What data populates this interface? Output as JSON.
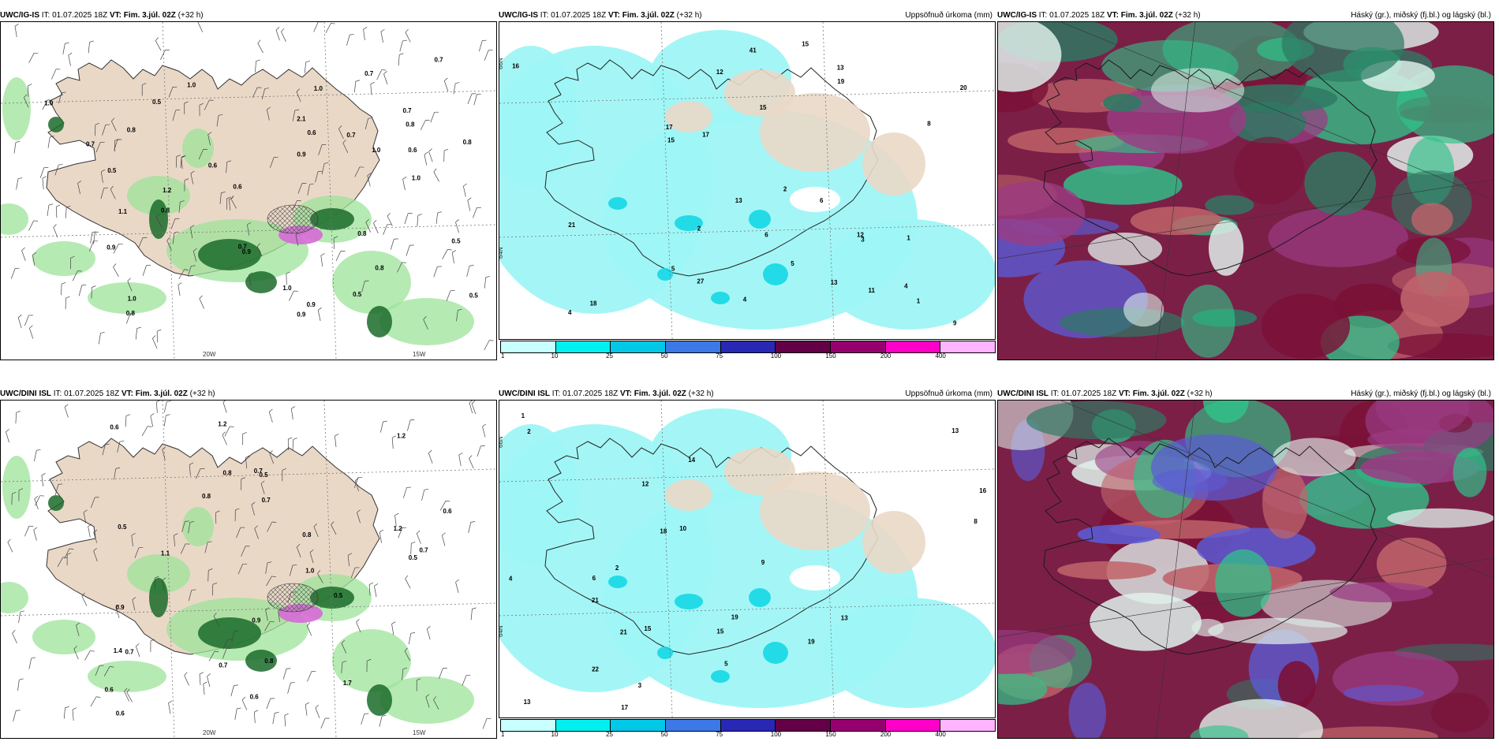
{
  "panels": [
    {
      "id": "p1",
      "model": "UWC/IG-IS",
      "it_label": "IT:",
      "it": "01.07.2025 18Z",
      "vt_label": "VT:",
      "vt": "Fim. 3.júl. 02Z",
      "lead": "(+32 h)",
      "right_title": ""
    },
    {
      "id": "p2",
      "model": "UWC/IG-IS",
      "it_label": "IT:",
      "it": "01.07.2025 18Z",
      "vt_label": "VT:",
      "vt": "Fim. 3.júl. 02Z",
      "lead": "(+32 h)",
      "right_title": "Uppsöfnuð úrkoma (mm)"
    },
    {
      "id": "p3",
      "model": "UWC/IG-IS",
      "it_label": "IT:",
      "it": "01.07.2025 18Z",
      "vt_label": "VT:",
      "vt": "Fim. 3.júl. 02Z",
      "lead": "(+32 h)",
      "right_title": "Háský (gr.), miðský (fj.bl.) og lágský (bl.)"
    },
    {
      "id": "p4",
      "model": "UWC/DINI ISL",
      "it_label": "IT:",
      "it": "01.07.2025 18Z",
      "vt_label": "VT:",
      "vt": "Fim. 3.júl. 02Z",
      "lead": "(+32 h)",
      "right_title": ""
    },
    {
      "id": "p5",
      "model": "UWC/DINI ISL",
      "it_label": "IT:",
      "it": "01.07.2025 18Z",
      "vt_label": "VT:",
      "vt": "Fim. 3.júl. 02Z",
      "lead": "(+32 h)",
      "right_title": "Uppsöfnuð úrkoma (mm)"
    },
    {
      "id": "p6",
      "model": "UWC/DINI ISL",
      "it_label": "IT:",
      "it": "01.07.2025 18Z",
      "vt_label": "VT:",
      "vt": "Fim. 3.júl. 02Z",
      "lead": "(+32 h)",
      "right_title": "Háský (gr.), miðský (fj.bl.) og lágský (bl.)"
    }
  ],
  "axis_labels": {
    "lon_20w": "20W",
    "lon_15w": "15W",
    "lat_66n": "66N",
    "lat_64n": "64N",
    "lat_25w": "25W"
  },
  "precip_legend": {
    "ticks": [
      "1",
      "10",
      "25",
      "50",
      "75",
      "100",
      "150",
      "200",
      "400"
    ],
    "colors": [
      "#c8ffff",
      "#00f0f0",
      "#00c8e6",
      "#3c78e6",
      "#2828b4",
      "#640046",
      "#96006e",
      "#ff00c8",
      "#ffb4ff"
    ]
  },
  "map_colors": {
    "land": "#ead8c7",
    "sea": "#ffffff",
    "precip_light": "#9ff5f5",
    "cloud_dark": "#7a1036",
    "cloud_mid": "#2fc38a",
    "cloud_low": "#5b5bd6"
  },
  "p1_values": [
    "1.0",
    "0.7",
    "1.0",
    "1.1",
    "0.9",
    "0.7",
    "0.6",
    "0.8",
    "0.7",
    "0.9",
    "0.5",
    "0.7",
    "0.8",
    "0.6",
    "0.8",
    "0.9",
    "1.0",
    "0.5",
    "1.2",
    "0.8",
    "1.0",
    "1.0",
    "0.5",
    "0.6",
    "0.7",
    "0.8",
    "2.1",
    "1.0",
    "0.9",
    "0.6",
    "0.9",
    "0.8",
    "1.0",
    "0.8",
    "0.5",
    "0.7",
    "0.5"
  ],
  "p2_values": [
    "4",
    "1",
    "2",
    "6",
    "12",
    "15",
    "4",
    "13",
    "11",
    "5",
    "9",
    "15",
    "27",
    "41",
    "13",
    "17",
    "12",
    "21",
    "13",
    "20",
    "16",
    "18",
    "4",
    "6",
    "3",
    "19",
    "17",
    "15",
    "8",
    "5",
    "1",
    "2"
  ],
  "p4_values": [
    "0.5",
    "0.7",
    "1.2",
    "1.4",
    "1.2",
    "0.6",
    "0.8",
    "0.5",
    "0.6",
    "0.7",
    "0.7",
    "0.5",
    "0.8",
    "0.9",
    "1.1",
    "0.8",
    "0.5",
    "0.6",
    "1.7",
    "0.6",
    "0.7",
    "0.9",
    "0.8",
    "1.0",
    "0.6",
    "0.7",
    "1.2"
  ],
  "p5_values": [
    "2",
    "1",
    "4",
    "13",
    "16",
    "19",
    "14",
    "15",
    "13",
    "13",
    "21",
    "9",
    "17",
    "21",
    "19",
    "18",
    "15",
    "22",
    "12",
    "10",
    "8",
    "5",
    "3",
    "2",
    "6"
  ]
}
